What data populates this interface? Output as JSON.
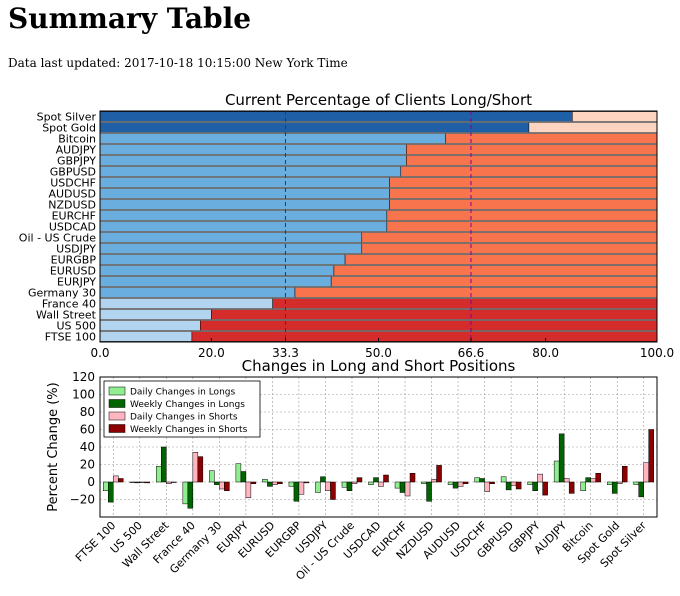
{
  "header": {
    "title": "Summary Table",
    "updated": "Data last updated: 2017-10-18 10:15:00 New York Time"
  },
  "chart_data": [
    {
      "type": "bar",
      "orientation": "horizontal-stacked",
      "title": "Current Percentage of Clients Long/Short",
      "categories": [
        "Spot Silver",
        "Spot Gold",
        "Bitcoin",
        "AUDJPY",
        "GBPJPY",
        "GBPUSD",
        "USDCHF",
        "AUDUSD",
        "NZDUSD",
        "EURCHF",
        "USDCAD",
        "Oil - US Crude",
        "USDJPY",
        "EURGBP",
        "EURUSD",
        "EURJPY",
        "Germany 30",
        "France 40",
        "Wall Street",
        "US 500",
        "FTSE 100"
      ],
      "series": [
        {
          "values": [
            84.8,
            77,
            62,
            55,
            55,
            54,
            52,
            52,
            52,
            51.5,
            51.5,
            47,
            47,
            44,
            42,
            41.5,
            35,
            31,
            20,
            18,
            16.5
          ]
        },
        {
          "values": [
            15.2,
            23,
            38,
            45,
            45,
            46,
            48,
            48,
            48,
            48.5,
            48.5,
            53,
            53,
            56,
            58,
            58.5,
            65,
            69,
            80,
            82,
            83.5
          ]
        }
      ],
      "xlim": [
        0,
        100
      ],
      "xticks": [
        "0.0",
        "20.0",
        "33.3",
        "50.0",
        "66.6",
        "80.0",
        "100.0"
      ],
      "reference_lines": [
        33.3,
        66.6
      ],
      "colors": {
        "long_dark": "#1f5fa6",
        "long_mid": "#6aaee0",
        "long_light": "#b3d4ee",
        "short_light": "#fdd4c0",
        "short_mid": "#f7744d",
        "short_dark": "#d42b2b",
        "ref_line": "#8b008b"
      }
    },
    {
      "type": "bar",
      "title": "Changes in Long and Short Positions",
      "ylabel": "Percent Change (%)",
      "ylim": [
        -40,
        120
      ],
      "yticks": [
        "120",
        "100",
        "80",
        "60",
        "40",
        "20",
        "0",
        "−20"
      ],
      "grid": true,
      "legend": "top-left",
      "categories": [
        "FTSE 100",
        "US 500",
        "Wall Street",
        "France 40",
        "Germany 30",
        "EURJPY",
        "EURUSD",
        "EURGBP",
        "USDJPY",
        "Oil - US Crude",
        "USDCAD",
        "EURCHF",
        "NZDUSD",
        "AUDUSD",
        "USDCHF",
        "GBPUSD",
        "GBPJPY",
        "AUDJPY",
        "Bitcoin",
        "Spot Gold",
        "Spot Silver"
      ],
      "series": [
        {
          "name": "Daily Changes in Longs",
          "color": "#90ee90",
          "values": [
            -10,
            0,
            18,
            -25,
            13,
            21,
            3,
            -5,
            -12,
            -6,
            -3,
            -7,
            -2,
            -3,
            5,
            6,
            -3,
            24,
            -10,
            -3,
            -3
          ]
        },
        {
          "name": "Weekly Changes in Longs",
          "color": "#006400",
          "values": [
            -23,
            -1,
            40,
            -30,
            -3,
            12,
            -5,
            -22,
            6,
            -10,
            5,
            -12,
            -22,
            -7,
            4,
            -9,
            -10,
            55,
            5,
            -13,
            -17
          ]
        },
        {
          "name": "Daily Changes in Shorts",
          "color": "#ffb6c1",
          "values": [
            7,
            0,
            -2,
            34,
            -8,
            -18,
            -3,
            -14,
            -10,
            -2,
            -5,
            -16,
            3,
            -5,
            -11,
            -4,
            9,
            4,
            4,
            -2,
            22
          ]
        },
        {
          "name": "Weekly Changes in Shorts",
          "color": "#8b0000",
          "values": [
            4,
            -1,
            0,
            29,
            -10,
            -2,
            -2,
            -1,
            -20,
            5,
            8,
            10,
            19,
            -2,
            -2,
            -8,
            -15,
            -13,
            10,
            18,
            60
          ]
        }
      ]
    }
  ]
}
